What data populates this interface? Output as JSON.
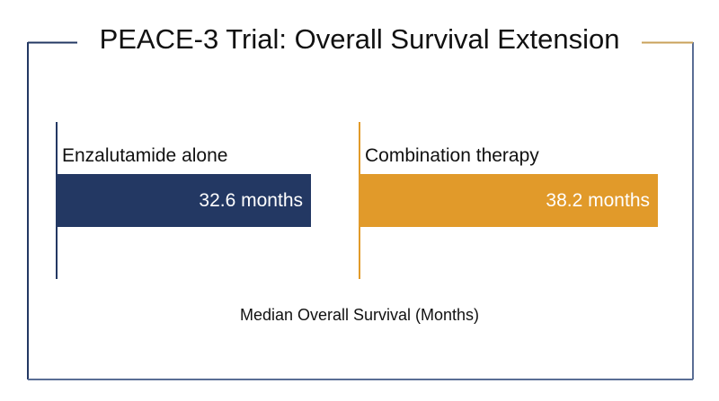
{
  "chart_data": {
    "type": "bar",
    "orientation": "horizontal",
    "title": "PEACE-3 Trial: Overall Survival Extension",
    "xlabel": "Median Overall Survival (Months)",
    "ylabel": "",
    "categories": [
      "Enzalutamide alone",
      "Combination therapy"
    ],
    "values": [
      32.6,
      38.2
    ],
    "value_labels": [
      "32.6 months",
      "38.2 months"
    ],
    "colors": [
      "#233863",
      "#E19A2A"
    ],
    "grid": false
  },
  "colors": {
    "frame_left": "#233863",
    "frame_right": "#C9A25A",
    "frame_bottom": "#5A6E95"
  }
}
